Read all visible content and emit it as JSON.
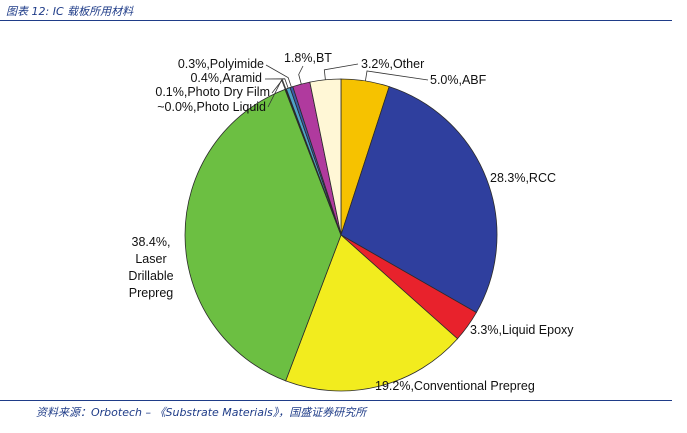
{
  "caption": "图表 12: IC 载板所用材料",
  "source": "资料来源：Orbotech – 《Substrate Materials》，国盛证券研究所",
  "chart_data": {
    "type": "pie",
    "title": "",
    "start_angle_deg": 0,
    "direction": "clockwise",
    "slices": [
      {
        "name": "ABF",
        "value": 5.0,
        "label": "5.0%,ABF",
        "color": "#f6c200"
      },
      {
        "name": "RCC",
        "value": 28.3,
        "label": "28.3%,RCC",
        "color": "#2f3f9e"
      },
      {
        "name": "Liquid Epoxy",
        "value": 3.3,
        "label": "3.3%,Liquid Epoxy",
        "color": "#e8222c"
      },
      {
        "name": "Conventional Prepreg",
        "value": 19.2,
        "label": "19.2%,Conventional Prepreg",
        "color": "#f2ec1e"
      },
      {
        "name": "Laser Drillable Prepreg",
        "value": 38.4,
        "label_lines": [
          "38.4%,",
          "Laser",
          "Drillable",
          "Prepreg"
        ],
        "color": "#6cbf42"
      },
      {
        "name": "Photo Liquid",
        "value": 0.05,
        "label": "~0.0%,Photo Liquid",
        "color": "#2a3a8a"
      },
      {
        "name": "Photo Dry Film",
        "value": 0.1,
        "label": "0.1%,Photo Dry Film",
        "color": "#1a1a1a"
      },
      {
        "name": "Aramid",
        "value": 0.4,
        "label": "0.4%,Aramid",
        "color": "#4fa3c8"
      },
      {
        "name": "Polyimide",
        "value": 0.3,
        "label": "0.3%,Polyimide",
        "color": "#3a5aa8"
      },
      {
        "name": "BT",
        "value": 1.8,
        "label": "1.8%,BT",
        "color": "#b03a9e"
      },
      {
        "name": "Other",
        "value": 3.2,
        "label": "3.2%,Other",
        "color": "#fff7d6"
      }
    ]
  }
}
